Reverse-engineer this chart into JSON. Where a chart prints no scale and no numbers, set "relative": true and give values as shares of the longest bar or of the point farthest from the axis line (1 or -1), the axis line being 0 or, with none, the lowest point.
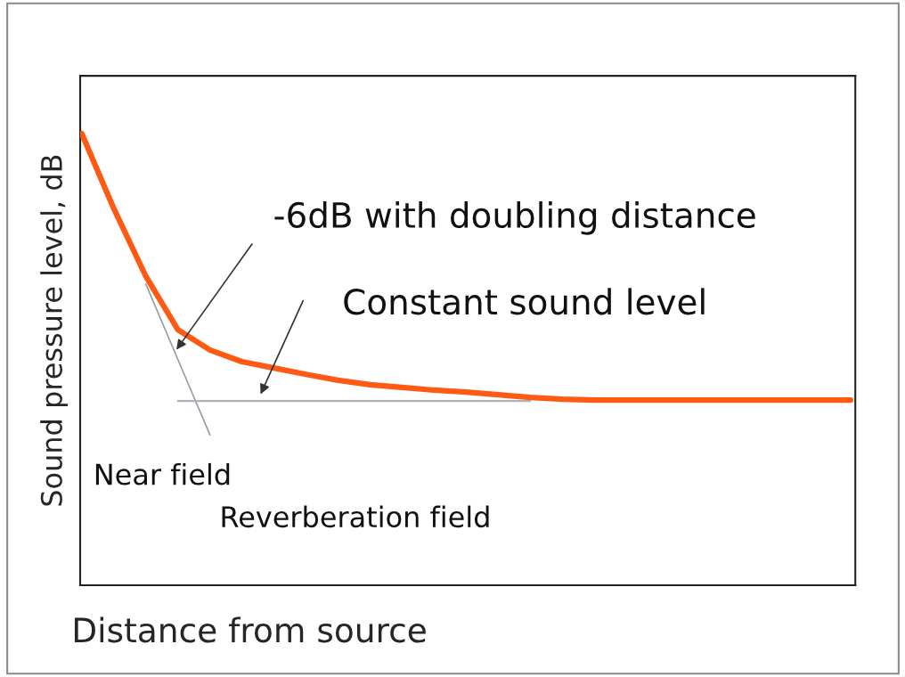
{
  "chart_data": {
    "type": "line",
    "relative": true,
    "xlabel": "Distance from source",
    "ylabel": "Sound pressure level, dB",
    "categories": [
      null,
      null,
      null,
      null,
      null,
      null,
      null,
      null,
      null,
      null,
      null,
      null,
      null,
      null,
      null,
      null,
      null,
      null,
      null,
      null,
      null,
      null,
      null,
      null,
      null
    ],
    "series": [
      {
        "color": "#ff5a14",
        "values": [
          1,
          0.834,
          0.684,
          0.566,
          0.521,
          0.495,
          0.481,
          0.467,
          0.454,
          0.444,
          0.438,
          0.432,
          0.428,
          0.422,
          0.416,
          0.412,
          0.41,
          0.41,
          0.41,
          0.41,
          0.41,
          0.41,
          0.41,
          0.41,
          0.41
        ]
      },
      {
        "color": "#9a9aa8",
        "values": [
          null,
          null,
          0.667,
          0.5,
          0.333,
          null,
          null,
          null,
          null,
          null,
          null,
          null,
          null,
          null,
          null,
          null,
          null,
          null,
          null,
          null,
          null,
          null,
          null,
          null,
          null
        ]
      },
      {
        "color": "#b0b0b8",
        "values": [
          null,
          null,
          null,
          0.408,
          0.408,
          0.408,
          0.408,
          0.408,
          0.408,
          0.408,
          0.408,
          0.408,
          0.408,
          0.408,
          0.408,
          null,
          null,
          null,
          null,
          null,
          null,
          null,
          null,
          null,
          null
        ]
      }
    ],
    "annotations": [
      "-6dB with doubling distance",
      "Constant sound level",
      "Near field",
      "Reverberation field"
    ]
  }
}
